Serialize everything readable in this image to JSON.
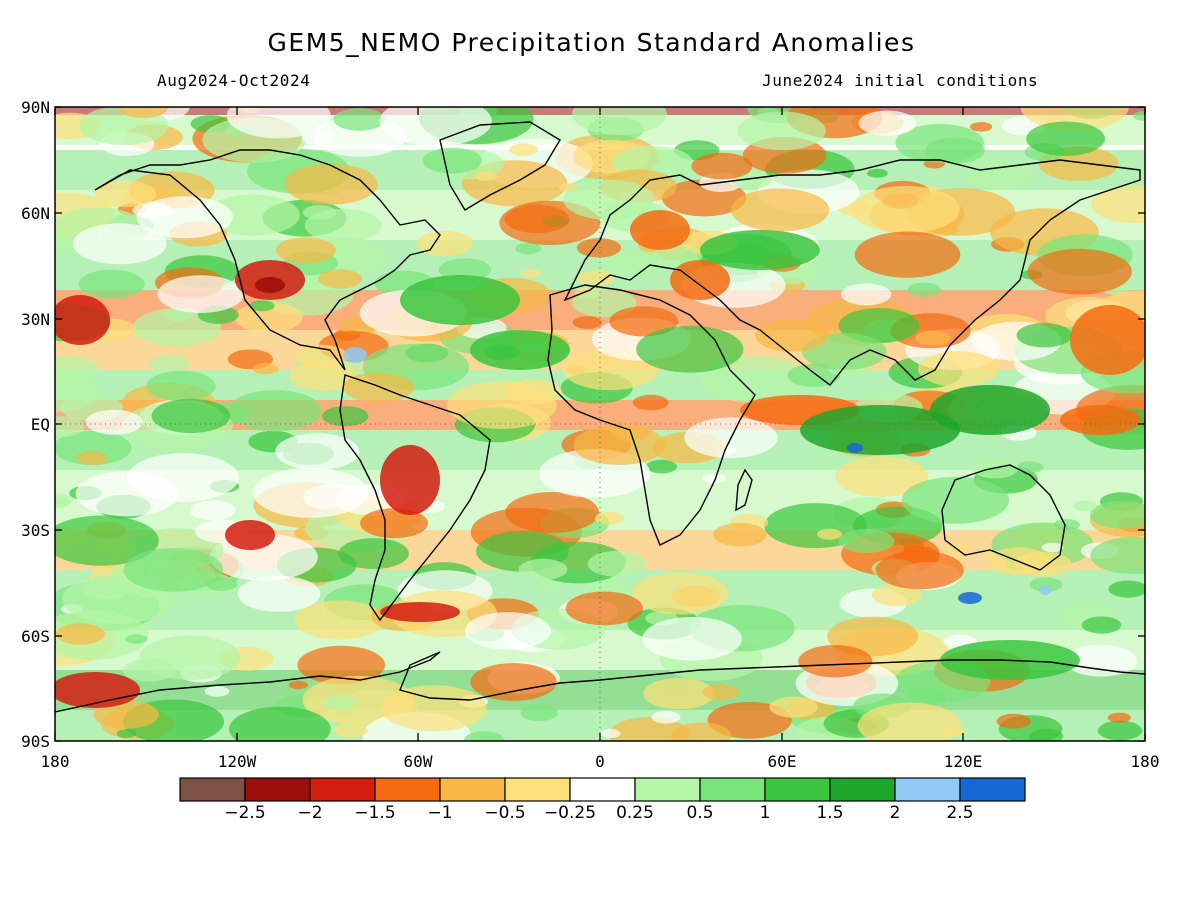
{
  "title": "GEM5_NEMO Precipitation Standard Anomalies",
  "period": "Aug2024-Oct2024",
  "init": "June2024 initial conditions",
  "lat_labels": [
    "90N",
    "60N",
    "30N",
    "EQ",
    "30S",
    "60S",
    "90S"
  ],
  "lon_labels": [
    "180",
    "120W",
    "60W",
    "0",
    "60E",
    "120E",
    "180"
  ],
  "colorbar": {
    "colors": [
      "#7b5148",
      "#9b0e0b",
      "#d41c10",
      "#f46b10",
      "#f8b845",
      "#fde07a",
      "#ffffff",
      "#b4f5a6",
      "#79e47a",
      "#3ac63e",
      "#1ea72b",
      "#8fc9f4",
      "#1668d7"
    ],
    "ticks": [
      "−2.5",
      "−2",
      "−1.5",
      "−1",
      "−0.5",
      "−0.25",
      "0.25",
      "0.5",
      "1",
      "1.5",
      "2",
      "2.5"
    ]
  }
}
